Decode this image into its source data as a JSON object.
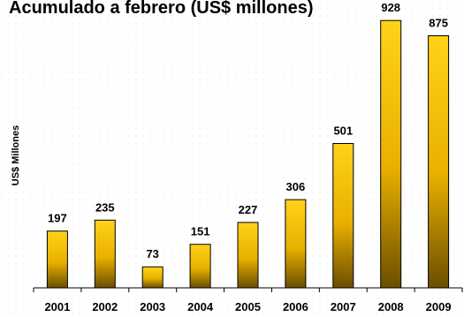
{
  "chart_data": {
    "type": "bar",
    "title": "Acumulado a febrero (US$ millones)",
    "xlabel": "",
    "ylabel": "US$ Millones",
    "categories": [
      "2001",
      "2002",
      "2003",
      "2004",
      "2005",
      "2006",
      "2007",
      "2008",
      "2009"
    ],
    "values": [
      197,
      235,
      73,
      151,
      227,
      306,
      501,
      928,
      875
    ],
    "ylim": [
      0,
      950
    ],
    "grid": false,
    "legend": "none",
    "colors": {
      "bar_top": "#FFD21A",
      "bar_mid": "#E9B000",
      "bar_bottom": "#6A4E00",
      "bar_stroke": "#000000",
      "axis": "#000000",
      "background_dots": "#D8D8D8"
    }
  }
}
